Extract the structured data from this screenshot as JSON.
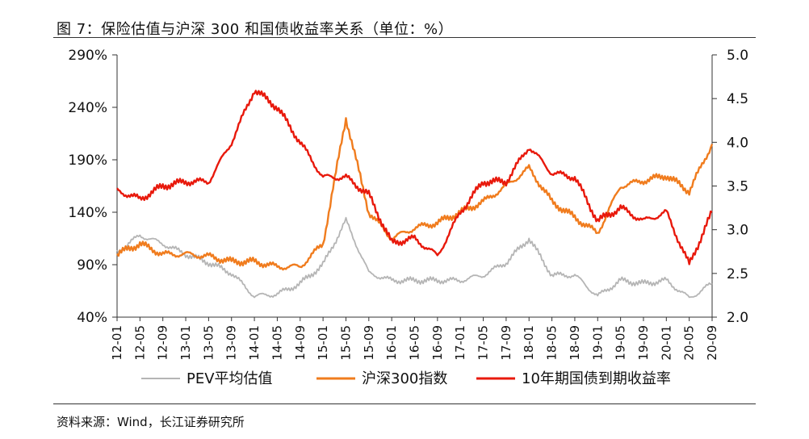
{
  "title": "图 7：保险估值与沪深 300 和国债收益率关系（单位：%）",
  "source": "资料来源：Wind，长江证券研究所",
  "colors": {
    "pev": "#b5b5b5",
    "hs300": "#f07c1e",
    "bond": "#e8190c"
  },
  "chart_data": {
    "type": "line",
    "title": "",
    "x": [
      "12-01",
      "12-05",
      "12-09",
      "13-01",
      "13-05",
      "13-09",
      "14-01",
      "14-05",
      "14-09",
      "15-01",
      "15-05",
      "15-09",
      "16-01",
      "16-05",
      "16-09",
      "17-01",
      "17-05",
      "17-09",
      "18-01",
      "18-05",
      "18-09",
      "19-01",
      "19-05",
      "19-09",
      "20-01",
      "20-05",
      "20-09"
    ],
    "left_axis": {
      "min": 40,
      "max": 290,
      "ticks": [
        "290%",
        "240%",
        "190%",
        "140%",
        "90%",
        "40%"
      ],
      "tick_values": [
        290,
        240,
        190,
        140,
        90,
        40
      ]
    },
    "right_axis": {
      "min": 2.0,
      "max": 5.0,
      "ticks": [
        "5.0",
        "4.5",
        "4.0",
        "3.5",
        "3.0",
        "2.5",
        "2.0"
      ],
      "tick_values": [
        5.0,
        4.5,
        4.0,
        3.5,
        3.0,
        2.5,
        2.0
      ]
    },
    "legend_position": "bottom",
    "series": [
      {
        "name": "PEV平均估值",
        "axis": "left",
        "color": "#b5b5b5",
        "values": [
          102,
          118,
          110,
          100,
          92,
          82,
          60,
          62,
          72,
          90,
          132,
          82,
          75,
          75,
          75,
          75,
          80,
          92,
          115,
          80,
          80,
          60,
          75,
          72,
          75,
          58,
          72
        ]
      },
      {
        "name": "沪深300指数",
        "axis": "left",
        "color": "#f07c1e",
        "values": [
          100,
          110,
          100,
          100,
          98,
          93,
          93,
          88,
          88,
          110,
          230,
          140,
          115,
          125,
          130,
          140,
          150,
          165,
          182,
          150,
          135,
          120,
          165,
          170,
          175,
          160,
          205
        ]
      },
      {
        "name": "10年期国债到期收益率",
        "axis": "right",
        "color": "#e8190c",
        "values": [
          3.45,
          3.35,
          3.5,
          3.55,
          3.55,
          4.0,
          4.6,
          4.4,
          4.0,
          3.6,
          3.6,
          3.4,
          2.85,
          2.9,
          2.7,
          3.2,
          3.55,
          3.55,
          3.95,
          3.65,
          3.6,
          3.1,
          3.25,
          3.1,
          3.2,
          2.6,
          3.2
        ]
      }
    ]
  }
}
